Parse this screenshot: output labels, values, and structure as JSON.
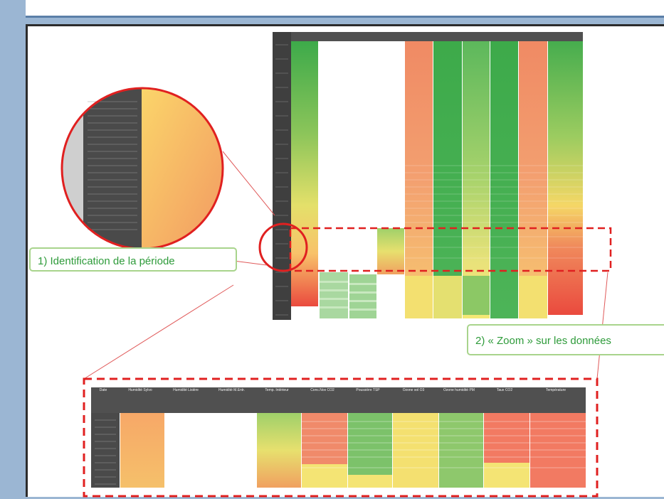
{
  "callouts": {
    "identification": "1) Identification de la période",
    "zoom": "2) « Zoom » sur les données"
  },
  "zoom_table": {
    "headers": [
      "Date",
      "Humidité Sylvo",
      "Humidité Lisière",
      "Humidité M.Entr.",
      "Temp. Intérieur",
      "Conc.Nox CO2",
      "Poussière TSP",
      "Ozone sol O3",
      "Ozone humidité PM",
      "Taux CO2",
      "Température"
    ]
  },
  "colors": {
    "green": "#3daa4a",
    "yellow": "#f5e06a",
    "red": "#ea4a3e",
    "orange": "#f49a5e",
    "dash_red": "#e02020",
    "header_dark": "#505050"
  }
}
